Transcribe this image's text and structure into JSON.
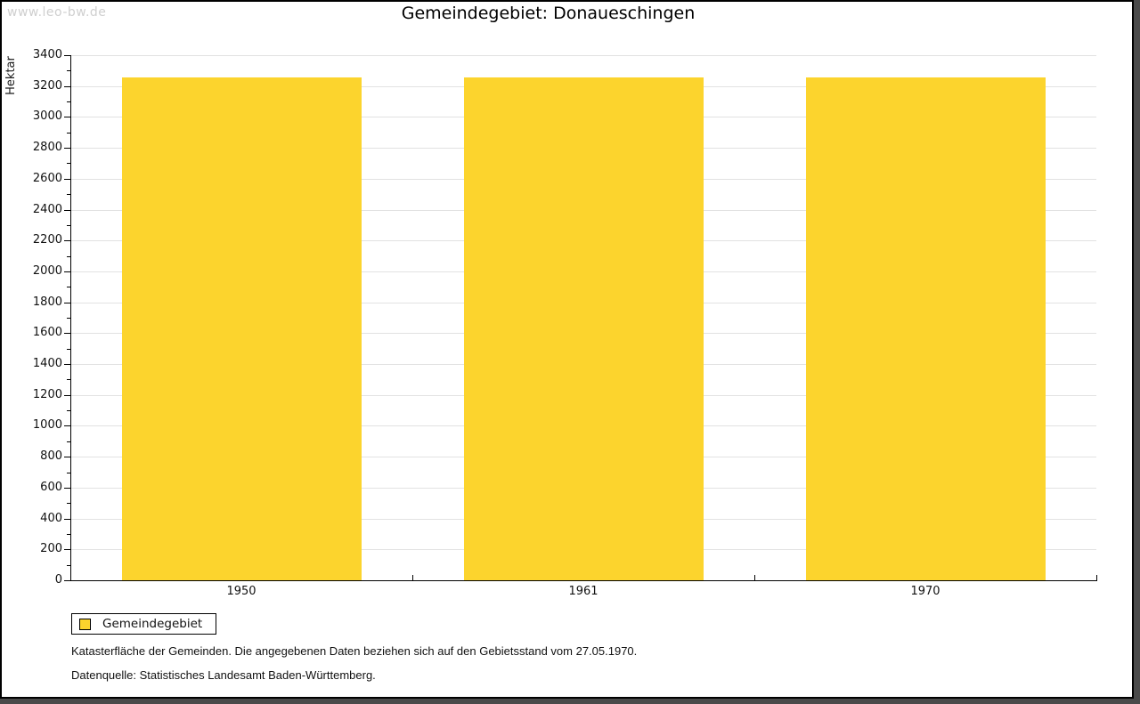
{
  "watermark": "www.leo-bw.de",
  "title": "Gemeindegebiet: Donaueschingen",
  "chart_data": {
    "type": "bar",
    "title": "Gemeindegebiet: Donaueschingen",
    "categories": [
      "1950",
      "1961",
      "1970"
    ],
    "series": [
      {
        "name": "Gemeindegebiet",
        "values": [
          3255,
          3255,
          3255
        ]
      }
    ],
    "xlabel": "",
    "ylabel": "Hektar",
    "ylim": [
      0,
      3400
    ],
    "ytick_major": 200,
    "ytick_minor": 100,
    "grid": true,
    "bar_color": "#fcd42d",
    "gridline_color": "#e2e2e2",
    "legend_position": "bottom-left"
  },
  "legend": {
    "items": [
      {
        "label": "Gemeindegebiet",
        "color": "#fcd42d"
      }
    ]
  },
  "footnotes": [
    "Katasterfläche der Gemeinden. Die angegebenen Daten beziehen sich auf den Gebietsstand vom 27.05.1970.",
    "Datenquelle: Statistisches Landesamt Baden-Württemberg."
  ]
}
